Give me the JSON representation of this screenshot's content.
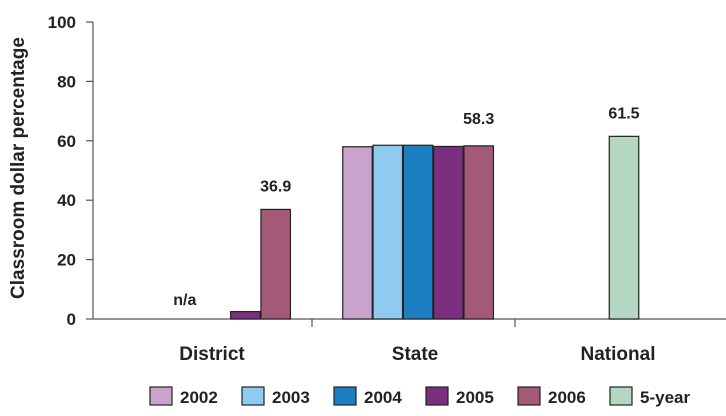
{
  "chart_data": {
    "type": "bar",
    "ylabel": "Classroom dollar percentage",
    "ylim": [
      0,
      100
    ],
    "yticks": [
      0,
      20,
      40,
      60,
      80,
      100
    ],
    "categories": [
      "District",
      "State",
      "National"
    ],
    "series": [
      {
        "name": "2002",
        "color": "#c9a3cc",
        "values": [
          null,
          58.0,
          null
        ]
      },
      {
        "name": "2003",
        "color": "#8fcbee",
        "values": [
          null,
          58.5,
          null
        ]
      },
      {
        "name": "2004",
        "color": "#1c7fc2",
        "values": [
          null,
          58.5,
          null
        ]
      },
      {
        "name": "2005",
        "color": "#7b2f7e",
        "values": [
          2.5,
          58.1,
          null
        ]
      },
      {
        "name": "2006",
        "color": "#a25a76",
        "values": [
          36.9,
          58.3,
          null
        ]
      },
      {
        "name": "5-year",
        "color": "#b3d7c0",
        "values": [
          null,
          null,
          61.5
        ]
      }
    ],
    "data_labels": [
      {
        "text": "n/a",
        "category": "District",
        "series": "2003"
      },
      {
        "text": "36.9",
        "category": "District",
        "series": "2006"
      },
      {
        "text": "58.3",
        "category": "State",
        "series": "2006"
      },
      {
        "text": "61.5",
        "category": "National",
        "series": "5-year"
      }
    ],
    "grid": false,
    "legend": "bottom"
  }
}
